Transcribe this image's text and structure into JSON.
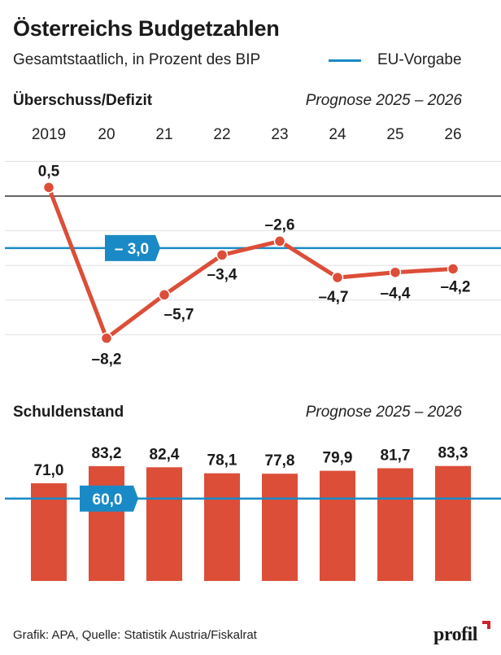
{
  "header": {
    "title": "Österreichs Budgetzahlen",
    "subtitle": "Gesamtstaatlich, in Prozent des BIP",
    "legend_label": "EU-Vorgabe"
  },
  "colors": {
    "accent_red": "#dc4e38",
    "eu_blue": "#1a8ac6",
    "zero_line": "#333333",
    "grid": "#e0e0e0"
  },
  "footer": {
    "source": "Grafik: APA, Quelle: Statistik Austria/Fiskalrat",
    "logo": "profil"
  },
  "chart_data": [
    {
      "type": "line",
      "title": "Überschuss/Defizit",
      "annotation": "Prognose 2025 – 2026",
      "categories": [
        "2019",
        "20",
        "21",
        "22",
        "23",
        "24",
        "25",
        "26"
      ],
      "values": [
        0.5,
        -8.2,
        -5.7,
        -3.4,
        -2.6,
        -4.7,
        -4.4,
        -4.2
      ],
      "labels": [
        "0,5",
        "–8,2",
        "–5,7",
        "–3,4",
        "–2,6",
        "–4,7",
        "–4,4",
        "–4,2"
      ],
      "reference_line": {
        "name": "EU-Vorgabe",
        "value": -3.0,
        "label": "– 3,0"
      },
      "gridlines": [
        2,
        0,
        -2,
        -4,
        -6,
        -8
      ],
      "ylim": [
        -9,
        2
      ],
      "grid": true,
      "xlabel": "",
      "ylabel": ""
    },
    {
      "type": "bar",
      "title": "Schuldenstand",
      "annotation": "Prognose 2025 – 2026",
      "categories": [
        "2019",
        "20",
        "21",
        "22",
        "23",
        "24",
        "25",
        "26"
      ],
      "values": [
        71.0,
        83.2,
        82.4,
        78.1,
        77.8,
        79.9,
        81.7,
        83.3
      ],
      "labels": [
        "71,0",
        "83,2",
        "82,4",
        "78,1",
        "77,8",
        "79,9",
        "81,7",
        "83,3"
      ],
      "reference_line": {
        "name": "EU-Vorgabe",
        "value": 60.0,
        "label": "60,0"
      },
      "ylim": [
        0,
        90
      ],
      "grid": false,
      "xlabel": "",
      "ylabel": ""
    }
  ]
}
